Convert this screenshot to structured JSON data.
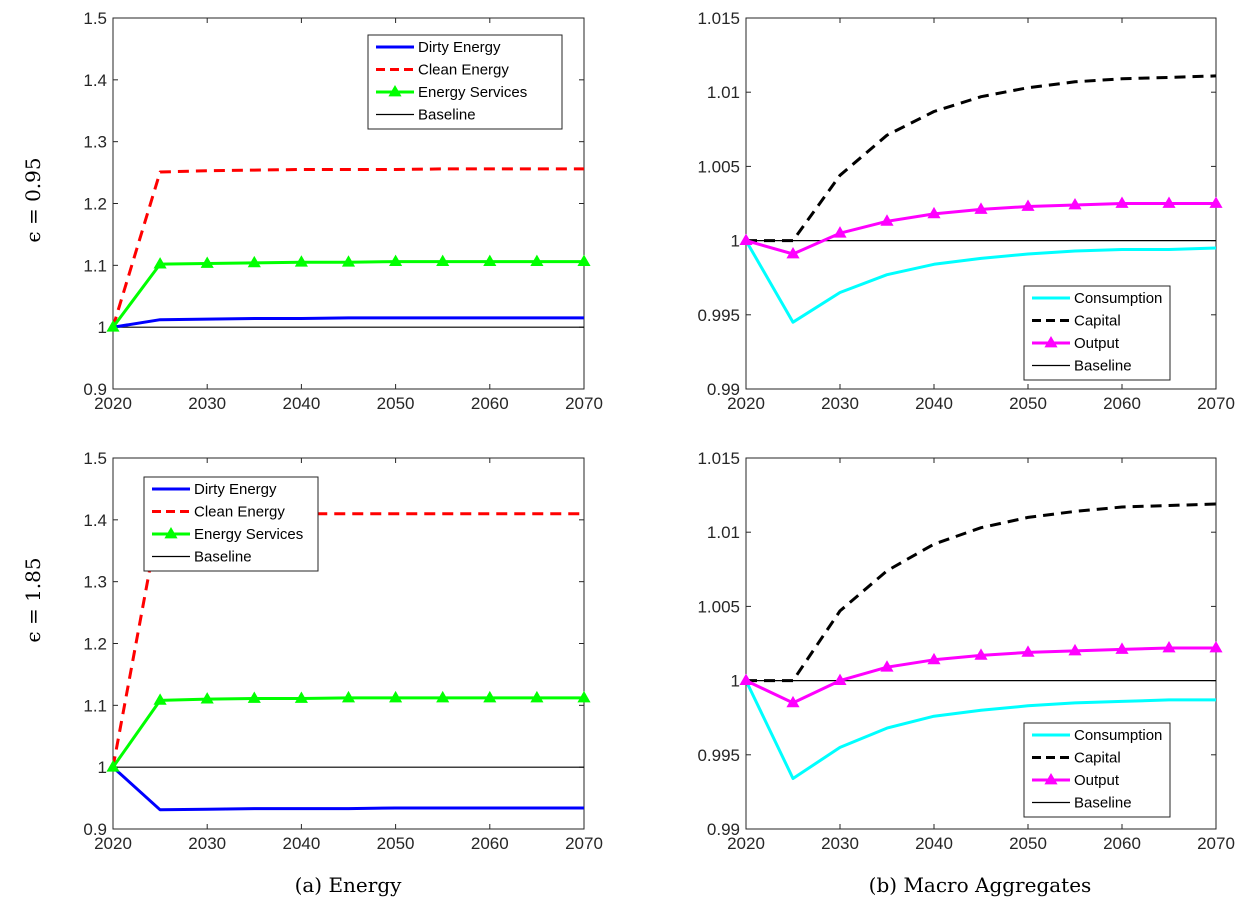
{
  "captions": [
    "(a) Energy",
    "(b) Macro Aggregates"
  ],
  "row_labels": [
    "ϵ = 0.95",
    "ϵ = 1.85"
  ],
  "colors": {
    "dirty": "#0000ff",
    "clean": "#ff0000",
    "services": "#00ff00",
    "baseline": "#000000",
    "consumption": "#00ffff",
    "capital": "#000000",
    "output": "#ff00ff"
  },
  "chart_data": [
    {
      "type": "line",
      "panel": "energy-top",
      "xlim": [
        2020,
        2070
      ],
      "ylim": [
        0.9,
        1.5
      ],
      "xticks": [
        2020,
        2030,
        2040,
        2050,
        2060,
        2070
      ],
      "yticks": [
        0.9,
        1,
        1.1,
        1.2,
        1.3,
        1.4,
        1.5
      ],
      "ytick_labels": [
        "0.9",
        "1",
        "1.1",
        "1.2",
        "1.3",
        "1.4",
        "1.5"
      ],
      "grid": false,
      "legend_position": "top-right",
      "series": [
        {
          "name": "Dirty Energy",
          "color": "#0000ff",
          "style": "solid",
          "x": [
            2020,
            2025,
            2030,
            2035,
            2040,
            2045,
            2050,
            2055,
            2060,
            2065,
            2070
          ],
          "y": [
            1,
            1.012,
            1.013,
            1.014,
            1.014,
            1.015,
            1.015,
            1.015,
            1.015,
            1.015,
            1.015
          ]
        },
        {
          "name": "Clean Energy",
          "color": "#ff0000",
          "style": "dashed",
          "x": [
            2020,
            2025,
            2030,
            2035,
            2040,
            2045,
            2050,
            2055,
            2060,
            2065,
            2070
          ],
          "y": [
            1,
            1.251,
            1.253,
            1.254,
            1.255,
            1.255,
            1.255,
            1.256,
            1.256,
            1.256,
            1.256
          ]
        },
        {
          "name": "Energy Services",
          "color": "#00ff00",
          "style": "solid",
          "marker": "triangle",
          "x": [
            2020,
            2025,
            2030,
            2035,
            2040,
            2045,
            2050,
            2055,
            2060,
            2065,
            2070
          ],
          "y": [
            1,
            1.102,
            1.103,
            1.104,
            1.105,
            1.105,
            1.106,
            1.106,
            1.106,
            1.106,
            1.106
          ]
        },
        {
          "name": "Baseline",
          "color": "#000000",
          "style": "thin",
          "x": [
            2020,
            2070
          ],
          "y": [
            1,
            1
          ]
        }
      ]
    },
    {
      "type": "line",
      "panel": "macro-top",
      "xlim": [
        2020,
        2070
      ],
      "ylim": [
        0.99,
        1.015
      ],
      "xticks": [
        2020,
        2030,
        2040,
        2050,
        2060,
        2070
      ],
      "yticks": [
        0.99,
        0.995,
        1,
        1.005,
        1.01,
        1.015
      ],
      "ytick_labels": [
        "0.99",
        "0.995",
        "1",
        "1.005",
        "1.01",
        "1.015"
      ],
      "grid": false,
      "legend_position": "bottom-right",
      "series": [
        {
          "name": "Consumption",
          "color": "#00ffff",
          "style": "solid",
          "x": [
            2020,
            2025,
            2030,
            2035,
            2040,
            2045,
            2050,
            2055,
            2060,
            2065,
            2070
          ],
          "y": [
            1,
            0.9945,
            0.9965,
            0.9977,
            0.9984,
            0.9988,
            0.9991,
            0.9993,
            0.9994,
            0.9994,
            0.9995
          ]
        },
        {
          "name": "Capital",
          "color": "#000000",
          "style": "dashed",
          "x": [
            2020,
            2025,
            2030,
            2035,
            2040,
            2045,
            2050,
            2055,
            2060,
            2065,
            2070
          ],
          "y": [
            1,
            1.0,
            1.0044,
            1.0071,
            1.0087,
            1.0097,
            1.0103,
            1.0107,
            1.0109,
            1.011,
            1.0111
          ]
        },
        {
          "name": "Output",
          "color": "#ff00ff",
          "style": "solid",
          "marker": "triangle",
          "x": [
            2020,
            2025,
            2030,
            2035,
            2040,
            2045,
            2050,
            2055,
            2060,
            2065,
            2070
          ],
          "y": [
            1,
            0.9991,
            1.0005,
            1.0013,
            1.0018,
            1.0021,
            1.0023,
            1.0024,
            1.0025,
            1.0025,
            1.0025
          ]
        },
        {
          "name": "Baseline",
          "color": "#000000",
          "style": "thin",
          "x": [
            2020,
            2070
          ],
          "y": [
            1,
            1
          ]
        }
      ]
    },
    {
      "type": "line",
      "panel": "energy-bottom",
      "xlim": [
        2020,
        2070
      ],
      "ylim": [
        0.9,
        1.5
      ],
      "xticks": [
        2020,
        2030,
        2040,
        2050,
        2060,
        2070
      ],
      "yticks": [
        0.9,
        1,
        1.1,
        1.2,
        1.3,
        1.4,
        1.5
      ],
      "ytick_labels": [
        "0.9",
        "1",
        "1.1",
        "1.2",
        "1.3",
        "1.4",
        "1.5"
      ],
      "grid": false,
      "legend_position": "top-left",
      "series": [
        {
          "name": "Dirty Energy",
          "color": "#0000ff",
          "style": "solid",
          "x": [
            2020,
            2025,
            2030,
            2035,
            2040,
            2045,
            2050,
            2055,
            2060,
            2065,
            2070
          ],
          "y": [
            1,
            0.931,
            0.932,
            0.933,
            0.933,
            0.933,
            0.934,
            0.934,
            0.934,
            0.934,
            0.934
          ]
        },
        {
          "name": "Clean Energy",
          "color": "#ff0000",
          "style": "dashed",
          "x": [
            2020,
            2025,
            2030,
            2035,
            2040,
            2045,
            2050,
            2055,
            2060,
            2065,
            2070
          ],
          "y": [
            1,
            1.41,
            1.41,
            1.41,
            1.41,
            1.41,
            1.41,
            1.41,
            1.41,
            1.41,
            1.41
          ]
        },
        {
          "name": "Energy Services",
          "color": "#00ff00",
          "style": "solid",
          "marker": "triangle",
          "x": [
            2020,
            2025,
            2030,
            2035,
            2040,
            2045,
            2050,
            2055,
            2060,
            2065,
            2070
          ],
          "y": [
            1,
            1.108,
            1.11,
            1.111,
            1.111,
            1.112,
            1.112,
            1.112,
            1.112,
            1.112,
            1.112
          ]
        },
        {
          "name": "Baseline",
          "color": "#000000",
          "style": "thin",
          "x": [
            2020,
            2070
          ],
          "y": [
            1,
            1
          ]
        }
      ]
    },
    {
      "type": "line",
      "panel": "macro-bottom",
      "xlim": [
        2020,
        2070
      ],
      "ylim": [
        0.99,
        1.015
      ],
      "xticks": [
        2020,
        2030,
        2040,
        2050,
        2060,
        2070
      ],
      "yticks": [
        0.99,
        0.995,
        1,
        1.005,
        1.01,
        1.015
      ],
      "ytick_labels": [
        "0.99",
        "0.995",
        "1",
        "1.005",
        "1.01",
        "1.015"
      ],
      "grid": false,
      "legend_position": "bottom-right",
      "series": [
        {
          "name": "Consumption",
          "color": "#00ffff",
          "style": "solid",
          "x": [
            2020,
            2025,
            2030,
            2035,
            2040,
            2045,
            2050,
            2055,
            2060,
            2065,
            2070
          ],
          "y": [
            1,
            0.9934,
            0.9955,
            0.9968,
            0.9976,
            0.998,
            0.9983,
            0.9985,
            0.9986,
            0.9987,
            0.9987
          ]
        },
        {
          "name": "Capital",
          "color": "#000000",
          "style": "dashed",
          "x": [
            2020,
            2025,
            2030,
            2035,
            2040,
            2045,
            2050,
            2055,
            2060,
            2065,
            2070
          ],
          "y": [
            1,
            1.0,
            1.0047,
            1.0074,
            1.0092,
            1.0103,
            1.011,
            1.0114,
            1.0117,
            1.0118,
            1.0119
          ]
        },
        {
          "name": "Output",
          "color": "#ff00ff",
          "style": "solid",
          "marker": "triangle",
          "x": [
            2020,
            2025,
            2030,
            2035,
            2040,
            2045,
            2050,
            2055,
            2060,
            2065,
            2070
          ],
          "y": [
            1,
            0.9985,
            1.0,
            1.0009,
            1.0014,
            1.0017,
            1.0019,
            1.002,
            1.0021,
            1.0022,
            1.0022
          ]
        },
        {
          "name": "Baseline",
          "color": "#000000",
          "style": "thin",
          "x": [
            2020,
            2070
          ],
          "y": [
            1,
            1
          ]
        }
      ]
    }
  ]
}
